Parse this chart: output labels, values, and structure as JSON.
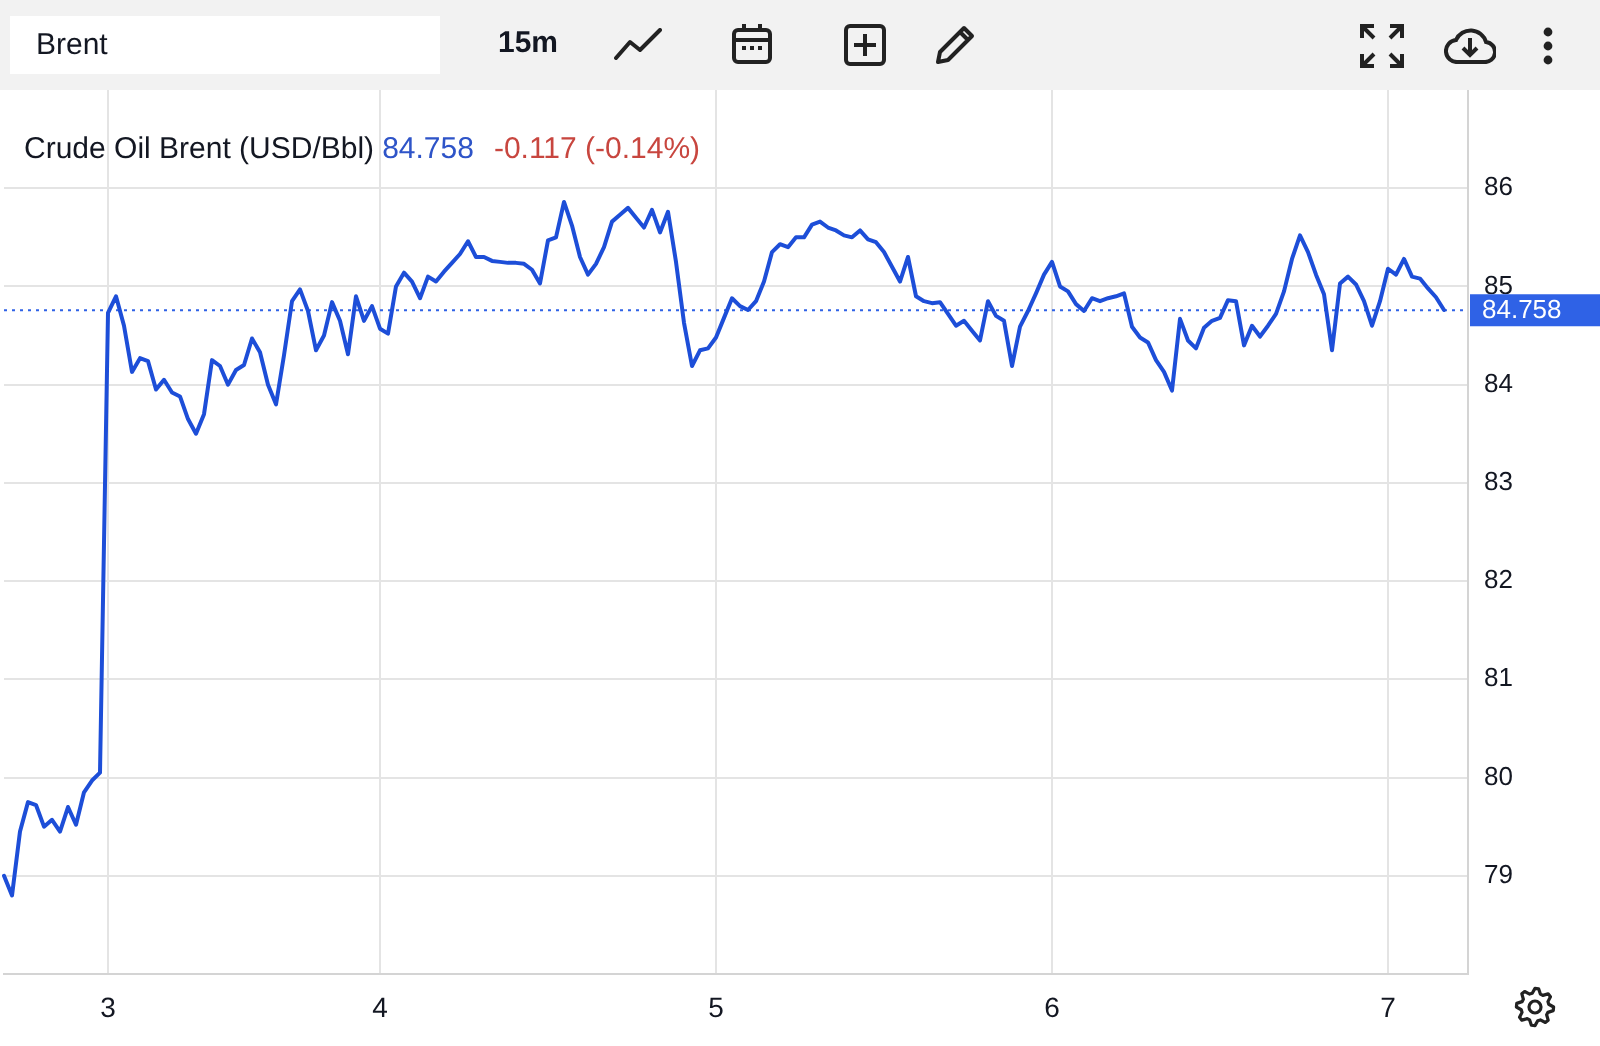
{
  "chart_data": {
    "type": "line",
    "title": "Crude Oil Brent (USD/Bbl)",
    "annotations": [
      "Brent",
      "15m",
      "84.758",
      "-0.117 (-0.14%)"
    ],
    "categories": [
      null,
      null,
      null,
      null,
      null,
      null,
      null,
      null,
      null,
      null,
      null,
      null,
      null,
      "3",
      null,
      null,
      null,
      null,
      null,
      null,
      null,
      null,
      null,
      null,
      null,
      null,
      null,
      null,
      null,
      null,
      null,
      null,
      null,
      null,
      null,
      null,
      null,
      null,
      null,
      null,
      null,
      null,
      null,
      null,
      null,
      null,
      null,
      "4",
      null,
      null,
      null,
      null,
      null,
      null,
      null,
      null,
      null,
      null,
      null,
      null,
      null,
      null,
      null,
      null,
      null,
      null,
      null,
      null,
      null,
      null,
      null,
      null,
      null,
      null,
      null,
      null,
      null,
      null,
      null,
      null,
      null,
      null,
      null,
      null,
      null,
      null,
      null,
      null,
      null,
      "5",
      null,
      null,
      null,
      null,
      null,
      null,
      null,
      null,
      null,
      null,
      null,
      null,
      null,
      null,
      null,
      null,
      null,
      null,
      null,
      null,
      null,
      null,
      null,
      null,
      null,
      null,
      null,
      null,
      null,
      null,
      null,
      null,
      null,
      null,
      null,
      null,
      null,
      null,
      null,
      null,
      null,
      "6",
      null,
      null,
      null,
      null,
      null,
      null,
      null,
      null,
      null,
      null,
      null,
      null,
      null,
      null,
      null,
      null,
      null,
      null,
      null,
      null,
      null,
      null,
      null,
      null,
      null,
      null,
      null,
      null,
      null,
      null,
      null,
      null,
      null,
      null,
      null,
      null,
      null,
      null,
      null,
      null,
      null,
      "7",
      null,
      null,
      null,
      null,
      null,
      null,
      null,
      null,
      null,
      null
    ],
    "series": [
      {
        "color": "#1d4ed8",
        "values": [
          79.0,
          78.8,
          79.45,
          79.75,
          79.72,
          79.5,
          79.57,
          79.45,
          79.7,
          79.52,
          79.85,
          79.97,
          80.05,
          84.73,
          84.9,
          84.6,
          84.13,
          84.27,
          84.24,
          83.95,
          84.05,
          83.92,
          83.88,
          83.65,
          83.5,
          83.7,
          84.25,
          84.19,
          84.0,
          84.15,
          84.2,
          84.47,
          84.33,
          84.0,
          83.8,
          84.3,
          84.85,
          84.97,
          84.75,
          84.35,
          84.5,
          84.84,
          84.65,
          84.31,
          84.9,
          84.65,
          84.8,
          84.57,
          84.52,
          85.0,
          85.14,
          85.05,
          84.88,
          85.1,
          85.05,
          85.15,
          85.24,
          85.33,
          85.46,
          85.3,
          85.3,
          85.26,
          85.25,
          85.24,
          85.24,
          85.23,
          85.17,
          85.03,
          85.47,
          85.5,
          85.86,
          85.62,
          85.3,
          85.12,
          85.23,
          85.4,
          85.66,
          85.73,
          85.8,
          85.7,
          85.6,
          85.78,
          85.55,
          85.76,
          85.25,
          84.63,
          84.19,
          84.35,
          84.37,
          84.48,
          84.68,
          84.88,
          84.8,
          84.76,
          84.85,
          85.05,
          85.35,
          85.43,
          85.4,
          85.5,
          85.5,
          85.63,
          85.66,
          85.6,
          85.57,
          85.52,
          85.5,
          85.57,
          85.48,
          85.45,
          85.35,
          85.2,
          85.05,
          85.3,
          84.9,
          84.85,
          84.83,
          84.84,
          84.72,
          84.6,
          84.65,
          84.55,
          84.45,
          84.85,
          84.7,
          84.65,
          84.19,
          84.59,
          84.75,
          84.93,
          85.12,
          85.25,
          85.0,
          84.95,
          84.82,
          84.75,
          84.88,
          84.85,
          84.88,
          84.9,
          84.93,
          84.59,
          84.48,
          84.43,
          84.25,
          84.13,
          83.94,
          84.67,
          84.45,
          84.37,
          84.58,
          84.65,
          84.68,
          84.86,
          84.85,
          84.4,
          84.6,
          84.49,
          84.6,
          84.72,
          84.95,
          85.28,
          85.52,
          85.35,
          85.12,
          84.92,
          84.35,
          85.03,
          85.1,
          85.02,
          84.85,
          84.6,
          84.85,
          85.18,
          85.12,
          85.28,
          85.1,
          85.08,
          84.98,
          84.89,
          84.76,
          null,
          null,
          null
        ]
      }
    ],
    "ylim": [
      78,
      87
    ],
    "yticks": [
      79,
      80,
      81,
      82,
      83,
      84,
      85,
      86
    ],
    "grid": true,
    "marker": "none",
    "line_style": "solid",
    "ref_lines": [
      {
        "axis": "y",
        "value": 84.758,
        "label": "84.758",
        "color": "#2f62e6",
        "line_style": "dotted"
      }
    ]
  }
}
